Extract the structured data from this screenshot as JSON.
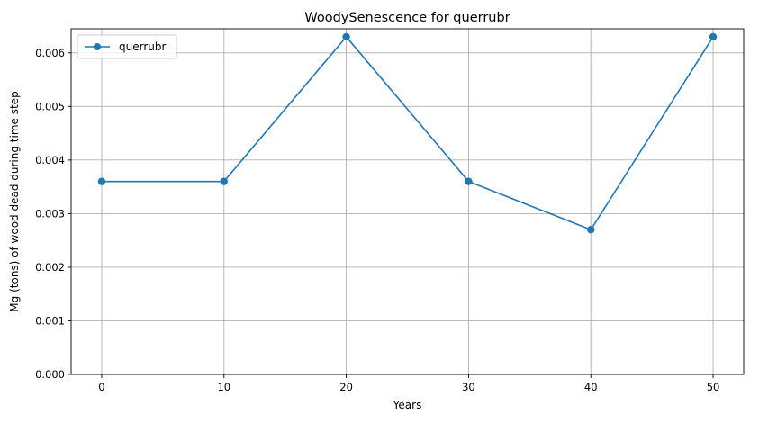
{
  "chart_data": {
    "type": "line",
    "title": "WoodySenescence for querrubr",
    "xlabel": "Years",
    "ylabel": "Mg (tons) of wood dead during time step",
    "x": [
      0,
      10,
      20,
      30,
      40,
      50
    ],
    "series": [
      {
        "name": "querrubr",
        "values": [
          0.0036,
          0.0036,
          0.0063,
          0.0036,
          0.0027,
          0.0063
        ],
        "color": "#1f77b4",
        "marker": "circle"
      }
    ],
    "xlim": [
      -2.5,
      52.5
    ],
    "ylim": [
      0,
      0.00645
    ],
    "xticks": [
      0,
      10,
      20,
      30,
      40,
      50
    ],
    "yticks": [
      0.0,
      0.001,
      0.002,
      0.003,
      0.004,
      0.005,
      0.006
    ],
    "ytick_labels": [
      "0.000",
      "0.001",
      "0.002",
      "0.003",
      "0.004",
      "0.005",
      "0.006"
    ],
    "grid": true,
    "legend_position": "top-left"
  }
}
